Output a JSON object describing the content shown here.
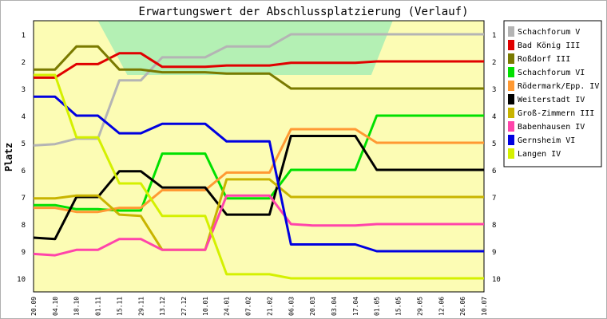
{
  "chart_data": {
    "type": "line",
    "title": "Erwartungswert der Abschlussplatzierung (Verlauf)",
    "xlabel": "",
    "ylabel": "Platz",
    "ylim": [
      10.5,
      0.5
    ],
    "grid": false,
    "legend_position": "right",
    "y_ticks": [
      "1",
      "2",
      "3",
      "4",
      "5",
      "6",
      "7",
      "8",
      "9",
      "10"
    ],
    "x": [
      "20.09",
      "04.10",
      "18.10",
      "01.11",
      "15.11",
      "29.11",
      "13.12",
      "27.12",
      "10.01",
      "24.01",
      "07.02",
      "21.02",
      "06.03",
      "20.03",
      "03.04",
      "17.04",
      "01.05",
      "15.05",
      "29.05",
      "12.06",
      "26.06",
      "10.07"
    ],
    "bands": [
      {
        "color": "#fcfcb4",
        "from": 0.5,
        "to": 10.5
      },
      {
        "color": "#b4f0b4",
        "from": 0.5,
        "to": 2.5
      }
    ],
    "series": [
      {
        "name": "Schachforum V",
        "color": "#b4b4b4",
        "values": [
          5.1,
          5.05,
          4.85,
          4.85,
          2.7,
          2.7,
          1.85,
          1.85,
          1.85,
          1.45,
          1.45,
          1.45,
          1.0,
          1.0,
          1.0,
          1.0,
          1.0,
          1.0,
          1.0,
          1.0,
          1.0,
          1.0
        ]
      },
      {
        "name": "Bad König III",
        "color": "#e00000",
        "values": [
          2.6,
          2.6,
          2.1,
          2.1,
          1.7,
          1.7,
          2.2,
          2.2,
          2.2,
          2.15,
          2.15,
          2.15,
          2.05,
          2.05,
          2.05,
          2.05,
          2.0,
          2.0,
          2.0,
          2.0,
          2.0,
          2.0
        ]
      },
      {
        "name": "Roßdorf III",
        "color": "#7a7a00",
        "values": [
          2.3,
          2.3,
          1.45,
          1.45,
          2.3,
          2.3,
          2.4,
          2.4,
          2.4,
          2.45,
          2.45,
          2.45,
          3.0,
          3.0,
          3.0,
          3.0,
          3.0,
          3.0,
          3.0,
          3.0,
          3.0,
          3.0
        ]
      },
      {
        "name": "Schachforum VI",
        "color": "#00e000",
        "values": [
          7.3,
          7.3,
          7.45,
          7.45,
          7.5,
          7.5,
          5.4,
          5.4,
          5.4,
          7.05,
          7.05,
          7.05,
          6.0,
          6.0,
          6.0,
          6.0,
          4.0,
          4.0,
          4.0,
          4.0,
          4.0,
          4.0
        ]
      },
      {
        "name": "Rödermark/Epp. IV",
        "color": "#ff9933",
        "values": [
          7.4,
          7.4,
          7.55,
          7.55,
          7.4,
          7.4,
          6.75,
          6.75,
          6.75,
          6.1,
          6.1,
          6.1,
          4.5,
          4.5,
          4.5,
          4.5,
          5.0,
          5.0,
          5.0,
          5.0,
          5.0,
          5.0
        ]
      },
      {
        "name": "Weiterstadt IV",
        "color": "#000000",
        "values": [
          8.5,
          8.55,
          7.0,
          7.0,
          6.05,
          6.05,
          6.65,
          6.65,
          6.65,
          7.65,
          7.65,
          7.65,
          4.75,
          4.75,
          4.75,
          4.75,
          6.0,
          6.0,
          6.0,
          6.0,
          6.0,
          6.0
        ]
      },
      {
        "name": "Groß-Zimmern III",
        "color": "#c8b400",
        "values": [
          7.05,
          7.05,
          6.95,
          6.95,
          7.65,
          7.7,
          8.95,
          8.95,
          8.95,
          6.35,
          6.35,
          6.35,
          7.0,
          7.0,
          7.0,
          7.0,
          7.0,
          7.0,
          7.0,
          7.0,
          7.0,
          7.0
        ]
      },
      {
        "name": "Babenhausen IV",
        "color": "#ff44aa",
        "values": [
          9.1,
          9.15,
          8.95,
          8.95,
          8.55,
          8.55,
          8.95,
          8.95,
          8.95,
          6.95,
          6.95,
          6.95,
          8.0,
          8.05,
          8.05,
          8.05,
          8.0,
          8.0,
          8.0,
          8.0,
          8.0,
          8.0
        ]
      },
      {
        "name": "Gernsheim VI",
        "color": "#0000e0",
        "values": [
          3.3,
          3.3,
          4.0,
          4.0,
          4.65,
          4.65,
          4.3,
          4.3,
          4.3,
          4.95,
          4.95,
          4.95,
          8.75,
          8.75,
          8.75,
          8.75,
          9.0,
          9.0,
          9.0,
          9.0,
          9.0,
          9.0
        ]
      },
      {
        "name": "Langen IV",
        "color": "#d4f000",
        "values": [
          2.5,
          2.5,
          4.8,
          4.8,
          6.5,
          6.5,
          7.7,
          7.7,
          7.7,
          9.85,
          9.85,
          9.85,
          10.0,
          10.0,
          10.0,
          10.0,
          10.0,
          10.0,
          10.0,
          10.0,
          10.0,
          10.0
        ]
      }
    ]
  }
}
